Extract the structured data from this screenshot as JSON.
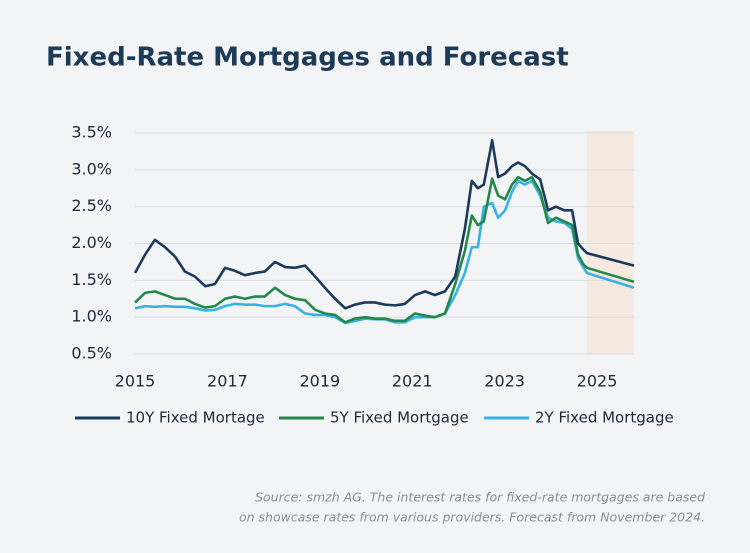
{
  "chart_data": {
    "type": "line",
    "title": "Fixed-Rate Mortgages and Forecast",
    "x": [
      2015.0,
      2015.22,
      2015.43,
      2015.65,
      2015.87,
      2016.08,
      2016.3,
      2016.52,
      2016.73,
      2016.95,
      2017.16,
      2017.38,
      2017.6,
      2017.81,
      2018.03,
      2018.25,
      2018.46,
      2018.68,
      2018.9,
      2019.11,
      2019.33,
      2019.55,
      2019.76,
      2019.98,
      2020.19,
      2020.41,
      2020.63,
      2020.84,
      2021.06,
      2021.28,
      2021.49,
      2021.71,
      2021.93,
      2022.14,
      2022.29,
      2022.42,
      2022.55,
      2022.73,
      2022.86,
      2023.01,
      2023.16,
      2023.29,
      2023.44,
      2023.59,
      2023.77,
      2023.94,
      2024.11,
      2024.29,
      2024.46,
      2024.59,
      2024.7,
      2024.78,
      2025.8
    ],
    "series": [
      {
        "name": "10Y Fixed Mortage",
        "color": "#1b3a5c",
        "values": [
          1.6,
          1.85,
          2.05,
          1.95,
          1.82,
          1.62,
          1.55,
          1.42,
          1.45,
          1.67,
          1.63,
          1.57,
          1.6,
          1.62,
          1.75,
          1.68,
          1.67,
          1.7,
          1.55,
          1.4,
          1.25,
          1.12,
          1.17,
          1.2,
          1.2,
          1.17,
          1.16,
          1.18,
          1.3,
          1.35,
          1.3,
          1.35,
          1.55,
          2.2,
          2.85,
          2.75,
          2.8,
          3.4,
          2.9,
          2.95,
          3.05,
          3.1,
          3.05,
          2.95,
          2.87,
          2.45,
          2.5,
          2.45,
          2.45,
          2.0,
          1.92,
          1.87,
          1.7
        ]
      },
      {
        "name": "5Y Fixed Mortgage",
        "color": "#23884a",
        "values": [
          1.2,
          1.33,
          1.35,
          1.3,
          1.25,
          1.25,
          1.18,
          1.13,
          1.15,
          1.25,
          1.28,
          1.25,
          1.28,
          1.28,
          1.4,
          1.3,
          1.25,
          1.23,
          1.1,
          1.05,
          1.03,
          0.93,
          0.98,
          1.0,
          0.98,
          0.98,
          0.95,
          0.95,
          1.05,
          1.02,
          1.0,
          1.05,
          1.45,
          1.9,
          2.38,
          2.25,
          2.3,
          2.88,
          2.65,
          2.6,
          2.8,
          2.9,
          2.85,
          2.9,
          2.7,
          2.28,
          2.35,
          2.3,
          2.25,
          1.85,
          1.72,
          1.67,
          1.48
        ]
      },
      {
        "name": "2Y Fixed Mortgage",
        "color": "#38b2e3",
        "values": [
          1.12,
          1.15,
          1.14,
          1.15,
          1.14,
          1.14,
          1.12,
          1.09,
          1.1,
          1.15,
          1.18,
          1.17,
          1.17,
          1.15,
          1.15,
          1.18,
          1.15,
          1.05,
          1.03,
          1.03,
          1.0,
          0.92,
          0.95,
          0.98,
          0.97,
          0.97,
          0.93,
          0.93,
          1.0,
          1.0,
          1.0,
          1.05,
          1.3,
          1.6,
          1.95,
          1.95,
          2.5,
          2.55,
          2.35,
          2.45,
          2.7,
          2.85,
          2.8,
          2.85,
          2.65,
          2.35,
          2.3,
          2.28,
          2.2,
          1.8,
          1.68,
          1.6,
          1.4
        ]
      }
    ],
    "xlim": [
      2015,
      2025.8
    ],
    "xticks": [
      2015,
      2017,
      2019,
      2021,
      2023,
      2025
    ],
    "ylim": [
      0.5,
      3.5
    ],
    "yticks": [
      {
        "value": 0.5,
        "label": "0.5%"
      },
      {
        "value": 1.0,
        "label": "1.0%"
      },
      {
        "value": 1.5,
        "label": "1.5%"
      },
      {
        "value": 2.0,
        "label": "2.0%"
      },
      {
        "value": 2.5,
        "label": "2.5%"
      },
      {
        "value": 3.0,
        "label": "3.0%"
      },
      {
        "value": 3.5,
        "label": "3.5%"
      }
    ],
    "grid": true,
    "forecast_start": 2024.78,
    "forecast_color": "#f6e9e0",
    "legend": "bottom",
    "source": [
      "Source: smzh AG. The interest rates for fixed-rate mortgages are based",
      "on showcase rates from various providers. Forecast from November 2024."
    ]
  }
}
